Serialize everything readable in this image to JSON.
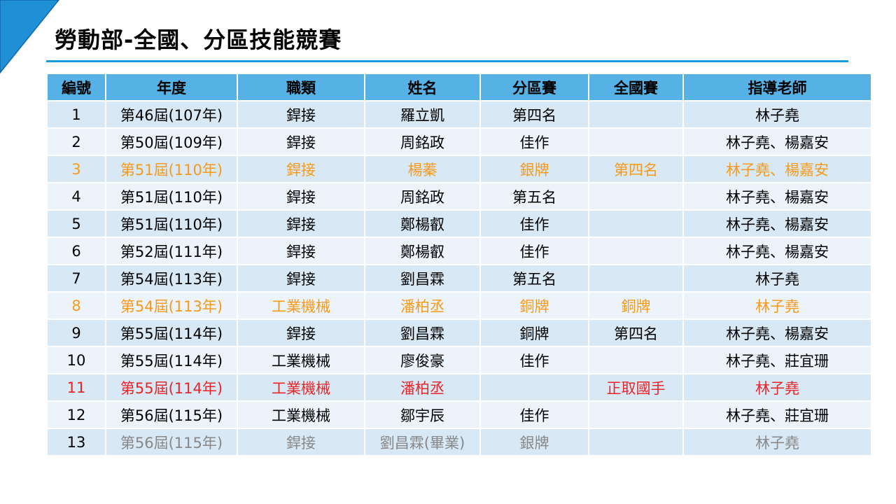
{
  "page_title": "勞動部-全國、分區技能競賽",
  "colors": {
    "accent_blue": "#1a9be0",
    "header_fill": "#56b1e4",
    "row_band_dark": "#d9e8f5",
    "row_band_light": "#edf3fa",
    "highlight_orange": "#f59a1b",
    "highlight_red": "#e8262a",
    "graduated_grey": "#888888"
  },
  "table": {
    "headers": [
      "編號",
      "年度",
      "職類",
      "姓名",
      "分區賽",
      "全國賽",
      "指導老師"
    ],
    "rows": [
      {
        "no": "1",
        "year": "第46屆(107年)",
        "trade": "銲接",
        "name": "羅立凱",
        "regional": "第四名",
        "national": "",
        "teacher": "林子堯",
        "highlight": "none"
      },
      {
        "no": "2",
        "year": "第50屆(109年)",
        "trade": "銲接",
        "name": "周銘政",
        "regional": "佳作",
        "national": "",
        "teacher": "林子堯、楊嘉安",
        "highlight": "none"
      },
      {
        "no": "3",
        "year": "第51屆(110年)",
        "trade": "銲接",
        "name": "楊蓁",
        "regional": "銀牌",
        "national": "第四名",
        "teacher": "林子堯、楊嘉安",
        "highlight": "orange"
      },
      {
        "no": "4",
        "year": "第51屆(110年)",
        "trade": "銲接",
        "name": "周銘政",
        "regional": "第五名",
        "national": "",
        "teacher": "林子堯、楊嘉安",
        "highlight": "none"
      },
      {
        "no": "5",
        "year": "第51屆(110年)",
        "trade": "銲接",
        "name": "鄭楊叡",
        "regional": "佳作",
        "national": "",
        "teacher": "林子堯、楊嘉安",
        "highlight": "none"
      },
      {
        "no": "6",
        "year": "第52屆(111年)",
        "trade": "銲接",
        "name": "鄭楊叡",
        "regional": "佳作",
        "national": "",
        "teacher": "林子堯、楊嘉安",
        "highlight": "none"
      },
      {
        "no": "7",
        "year": "第54屆(113年)",
        "trade": "銲接",
        "name": "劉昌霖",
        "regional": "第五名",
        "national": "",
        "teacher": "林子堯",
        "highlight": "none"
      },
      {
        "no": "8",
        "year": "第54屆(113年)",
        "trade": "工業機械",
        "name": "潘柏丞",
        "regional": "銅牌",
        "national": "銅牌",
        "teacher": "林子堯",
        "highlight": "orange"
      },
      {
        "no": "9",
        "year": "第55屆(114年)",
        "trade": "銲接",
        "name": "劉昌霖",
        "regional": "銅牌",
        "national": "第四名",
        "teacher": "林子堯、楊嘉安",
        "highlight": "none"
      },
      {
        "no": "10",
        "year": "第55屆(114年)",
        "trade": "工業機械",
        "name": "廖俊豪",
        "regional": "佳作",
        "national": "",
        "teacher": "林子堯、莊宜珊",
        "highlight": "none"
      },
      {
        "no": "11",
        "year": "第55屆(114年)",
        "trade": "工業機械",
        "name": "潘柏丞",
        "regional": "",
        "national": "正取國手",
        "teacher": "林子堯",
        "highlight": "red"
      },
      {
        "no": "12",
        "year": "第56屆(115年)",
        "trade": "工業機械",
        "name": "鄒宇辰",
        "regional": "佳作",
        "national": "",
        "teacher": "林子堯、莊宜珊",
        "highlight": "none"
      },
      {
        "no": "13",
        "year": "第56屆(115年)",
        "trade": "銲接",
        "name": "劉昌霖(畢業)",
        "regional": "銀牌",
        "national": "",
        "teacher": "林子堯",
        "highlight": "grey"
      }
    ]
  }
}
